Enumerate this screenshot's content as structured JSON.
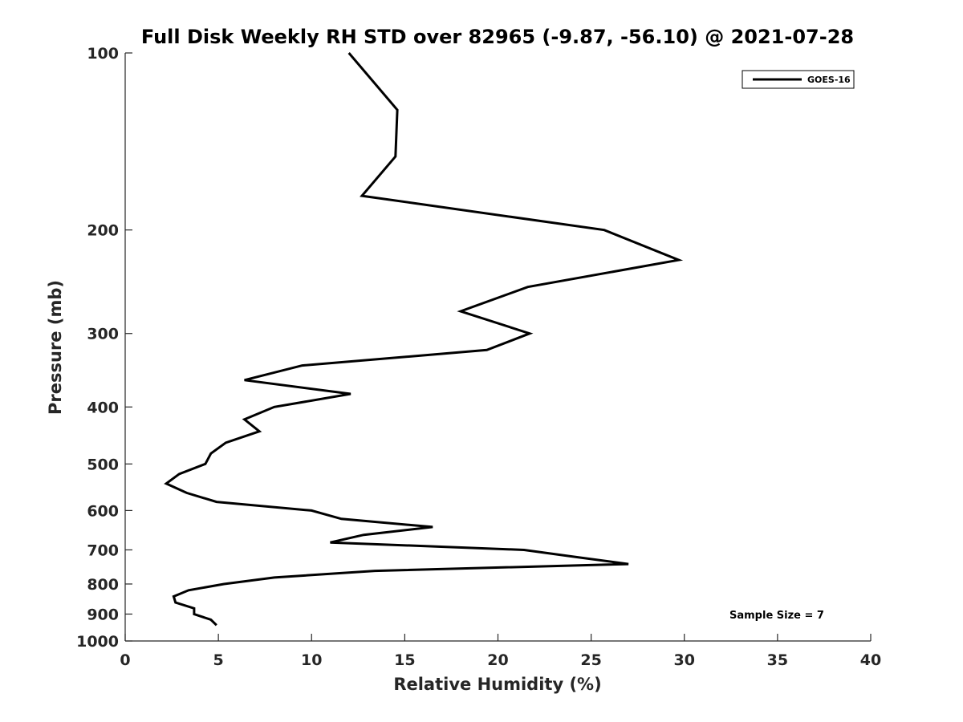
{
  "chart_data": {
    "type": "line",
    "title": "Full Disk Weekly RH STD over 82965 (-9.87, -56.10) @ 2021-07-28",
    "xlabel": "Relative Humidity (%)",
    "ylabel": "Pressure (mb)",
    "xlim": [
      0,
      40
    ],
    "ylim": [
      100,
      1000
    ],
    "y_scale": "log",
    "y_reversed": true,
    "x_ticks": [
      "0",
      "5",
      "10",
      "15",
      "20",
      "25",
      "30",
      "35",
      "40"
    ],
    "y_ticks": [
      "100",
      "200",
      "300",
      "400",
      "500",
      "600",
      "700",
      "800",
      "900",
      "1000"
    ],
    "grid": false,
    "legend_position": "top-right",
    "annotation": "Sample Size = 7",
    "series": [
      {
        "name": "GOES-16",
        "color": "#000000",
        "points": [
          [
            12.0,
            100
          ],
          [
            14.6,
            125
          ],
          [
            14.5,
            150
          ],
          [
            12.7,
            175
          ],
          [
            25.7,
            200
          ],
          [
            29.7,
            225
          ],
          [
            21.6,
            250
          ],
          [
            18.0,
            275
          ],
          [
            21.7,
            300
          ],
          [
            19.4,
            320
          ],
          [
            9.5,
            340
          ],
          [
            6.4,
            360
          ],
          [
            12.1,
            380
          ],
          [
            8.0,
            400
          ],
          [
            6.4,
            420
          ],
          [
            7.2,
            440
          ],
          [
            5.4,
            460
          ],
          [
            4.6,
            480
          ],
          [
            4.3,
            500
          ],
          [
            2.9,
            520
          ],
          [
            2.2,
            540
          ],
          [
            3.3,
            560
          ],
          [
            4.9,
            580
          ],
          [
            10.0,
            600
          ],
          [
            11.6,
            620
          ],
          [
            16.5,
            640
          ],
          [
            12.8,
            660
          ],
          [
            11.0,
            680
          ],
          [
            21.4,
            700
          ],
          [
            24.2,
            720
          ],
          [
            27.0,
            740
          ],
          [
            13.4,
            760
          ],
          [
            8.0,
            780
          ],
          [
            5.3,
            800
          ],
          [
            3.4,
            820
          ],
          [
            2.6,
            840
          ],
          [
            2.7,
            860
          ],
          [
            3.7,
            880
          ],
          [
            3.7,
            900
          ],
          [
            4.6,
            920
          ],
          [
            4.9,
            940
          ]
        ]
      }
    ]
  }
}
